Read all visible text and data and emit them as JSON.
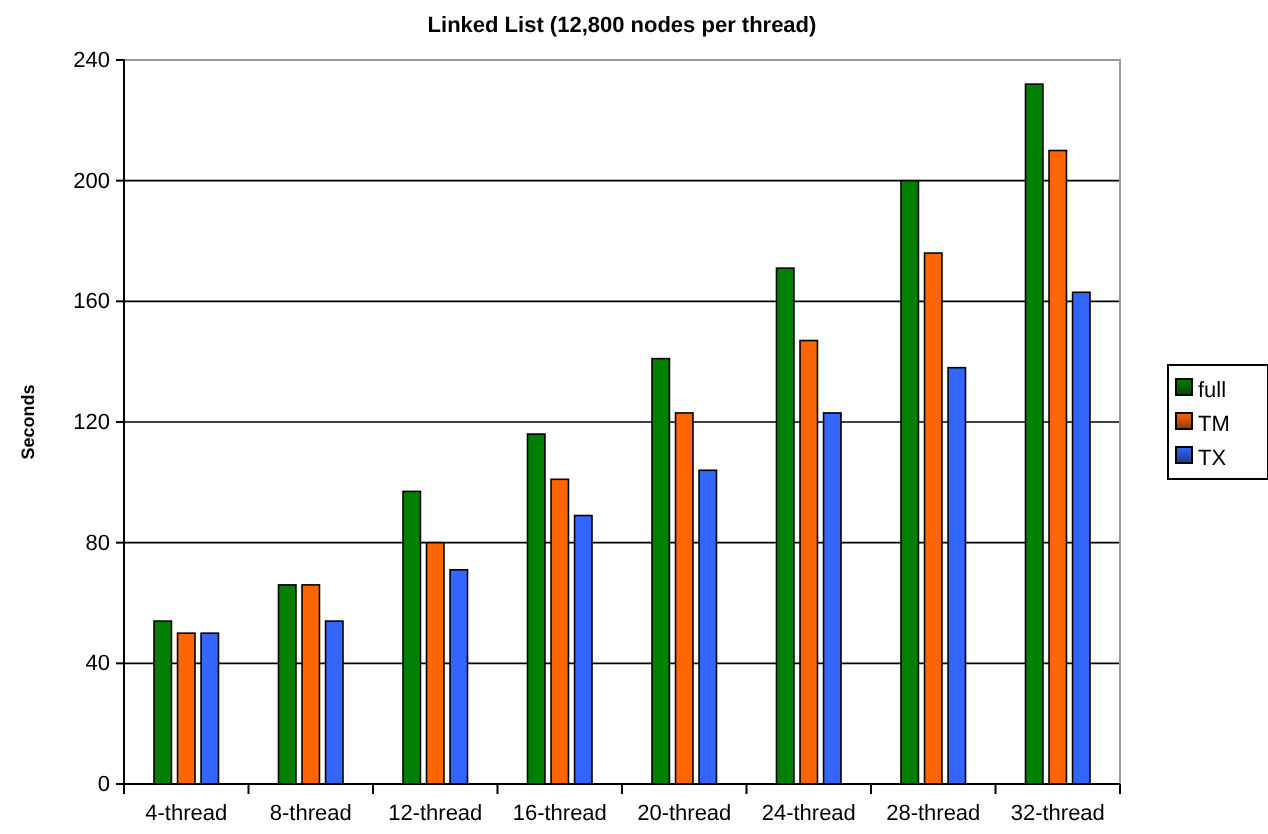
{
  "chart_data": {
    "type": "bar",
    "title": "Linked List (12,800 nodes per thread)",
    "ylabel": "Seconds",
    "categories": [
      "4-thread",
      "8-thread",
      "12-thread",
      "16-thread",
      "20-thread",
      "24-thread",
      "28-thread",
      "32-thread"
    ],
    "series": [
      {
        "name": "full",
        "color": "#008000",
        "values": [
          54,
          66,
          97,
          116,
          141,
          171,
          200,
          232
        ]
      },
      {
        "name": "TM",
        "color": "#ff6600",
        "values": [
          50,
          66,
          80,
          101,
          123,
          147,
          176,
          210
        ]
      },
      {
        "name": "TX",
        "color": "#3366ff",
        "values": [
          50,
          54,
          71,
          89,
          104,
          123,
          138,
          163
        ]
      }
    ],
    "ylim": [
      0,
      240
    ],
    "yticks": [
      0,
      40,
      80,
      120,
      160,
      200,
      240
    ],
    "grid": "y",
    "legend": "right"
  }
}
